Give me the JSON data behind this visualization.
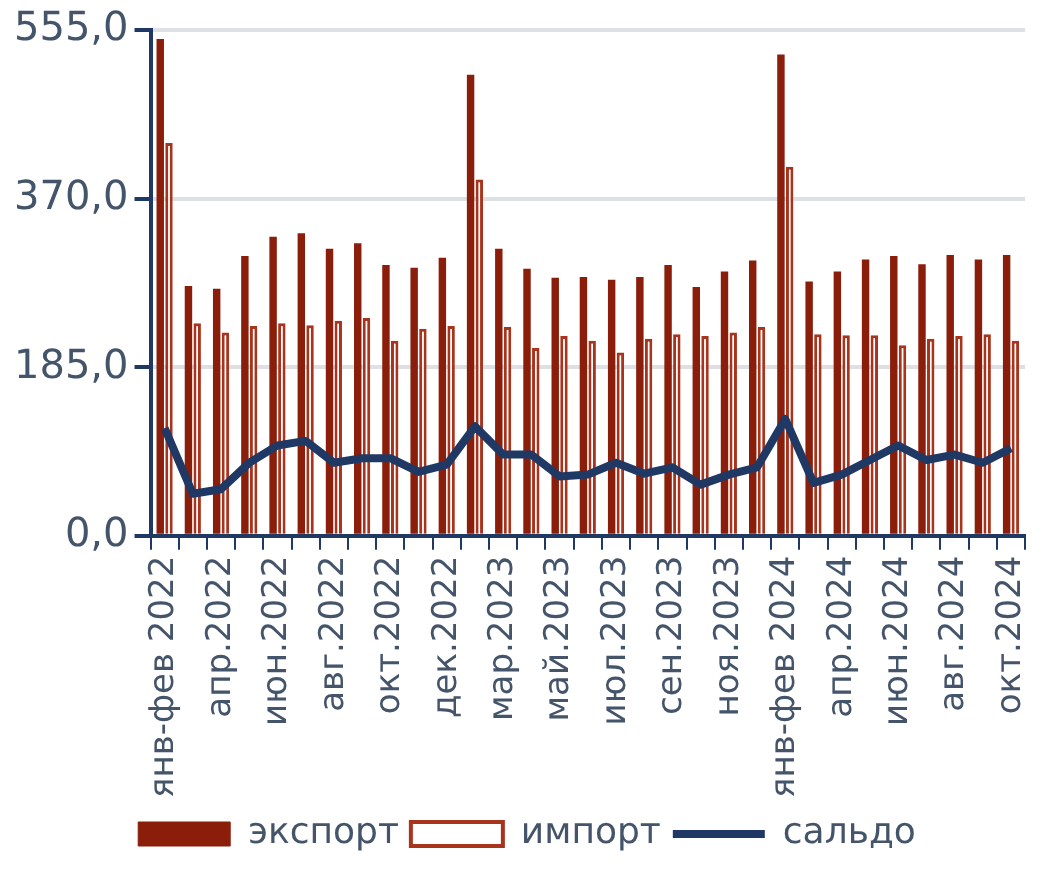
{
  "chart_data": {
    "type": "bar",
    "categories": [
      "янв-фев 2022",
      null,
      "апр.2022",
      null,
      "июн.2022",
      null,
      "авг.2022",
      null,
      "окт.2022",
      null,
      "дек.2022",
      null,
      "мар.2023",
      null,
      "май.2023",
      null,
      "июл.2023",
      null,
      "сен.2023",
      null,
      "ноя.2023",
      null,
      "янв-фев 2024",
      null,
      "апр.2024",
      null,
      "июн.2024",
      null,
      "авг.2024",
      null,
      "окт.2024"
    ],
    "series": [
      {
        "name": "экспорт",
        "color": "#8b1e0b",
        "values": [
          545,
          274,
          271,
          307,
          328,
          332,
          315,
          321,
          297,
          294,
          305,
          506,
          315,
          293,
          283,
          284,
          281,
          284,
          297,
          273,
          290,
          302,
          528,
          279,
          290,
          303,
          307,
          298,
          308,
          303,
          308
        ]
      },
      {
        "name": "импорт",
        "color": "#a8341e",
        "values": [
          431,
          233,
          223,
          230,
          233,
          231,
          236,
          239,
          214,
          227,
          230,
          391,
          229,
          206,
          219,
          214,
          201,
          216,
          221,
          219,
          223,
          229,
          405,
          221,
          220,
          220,
          209,
          216,
          219,
          221,
          214
        ]
      },
      {
        "name": "сальдо",
        "type": "line",
        "color": "#1f3864",
        "values": [
          118,
          46,
          51,
          80,
          99,
          104,
          80,
          85,
          85,
          70,
          78,
          120,
          89,
          89,
          65,
          67,
          80,
          68,
          75,
          56,
          67,
          75,
          128,
          58,
          67,
          83,
          99,
          83,
          89,
          80,
          96
        ]
      }
    ],
    "ylim": [
      0,
      555
    ],
    "yticks": [
      {
        "value": 0,
        "label": "0,0"
      },
      {
        "value": 185,
        "label": "185,0"
      },
      {
        "value": 370,
        "label": "370,0"
      },
      {
        "value": 555,
        "label": "555,0"
      }
    ],
    "grid": "y",
    "legend": "bottom"
  }
}
